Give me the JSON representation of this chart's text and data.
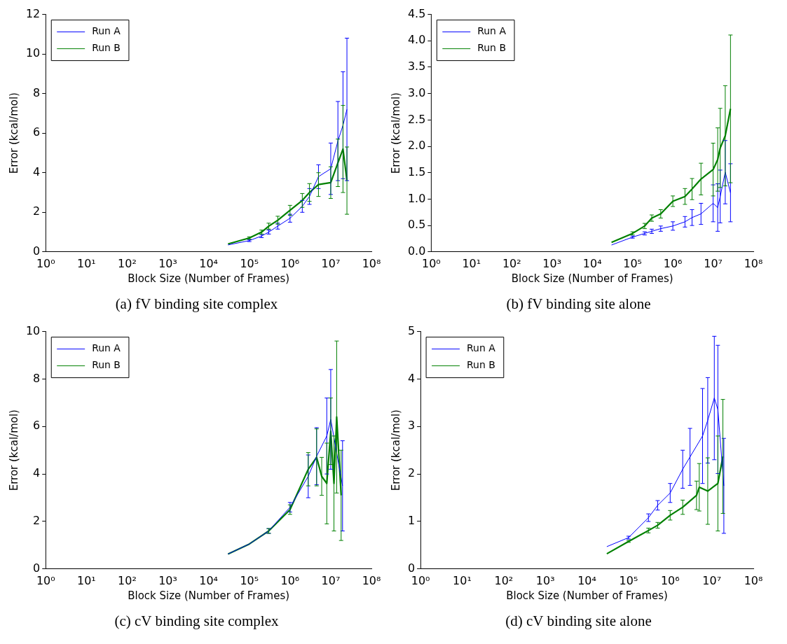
{
  "chart_data": [
    {
      "type": "line",
      "xlabel": "Block Size (Number of Frames)",
      "ylabel": "Error (kcal/mol)",
      "annotations": [
        "(a) fV binding site complex"
      ],
      "log": "x",
      "grid": false,
      "legend": "top left",
      "marker": "none",
      "line_style": "solid",
      "xlim": [
        1,
        100000000
      ],
      "xticks": [
        {
          "value": 1,
          "label": "10⁰"
        },
        {
          "value": 10,
          "label": "10¹"
        },
        {
          "value": 100,
          "label": "10²"
        },
        {
          "value": 1000,
          "label": "10³"
        },
        {
          "value": 10000,
          "label": "10⁴"
        },
        {
          "value": 100000,
          "label": "10⁵"
        },
        {
          "value": 1000000,
          "label": "10⁶"
        },
        {
          "value": 10000000,
          "label": "10⁷"
        },
        {
          "value": 100000000,
          "label": "10⁸"
        }
      ],
      "ylim": [
        0,
        12
      ],
      "yticks": [
        0,
        2,
        4,
        6,
        8,
        10,
        12
      ],
      "series": [
        {
          "name": "Run A",
          "color": "#0000ff",
          "x": [
            30000,
            100000,
            200000,
            300000,
            500000,
            1000000,
            2000000,
            3000000,
            5000000,
            10000000,
            15000000,
            20000000,
            25000000
          ],
          "values": [
            0.35,
            0.57,
            0.8,
            1.0,
            1.3,
            1.7,
            2.3,
            2.8,
            3.8,
            4.2,
            5.6,
            6.4,
            7.2
          ],
          "errors": [
            null,
            0.05,
            0.08,
            0.1,
            0.15,
            0.2,
            0.3,
            0.4,
            0.6,
            1.3,
            2.0,
            2.7,
            3.6
          ]
        },
        {
          "name": "Run B",
          "color": "#008000",
          "x": [
            30000,
            100000,
            200000,
            300000,
            500000,
            1000000,
            2000000,
            3000000,
            5000000,
            10000000,
            15000000,
            20000000,
            25000000
          ],
          "values": [
            0.4,
            0.7,
            1.0,
            1.3,
            1.6,
            2.1,
            2.6,
            3.0,
            3.4,
            3.5,
            4.5,
            5.2,
            3.6
          ],
          "errors": [
            null,
            0.06,
            0.1,
            0.15,
            0.2,
            0.25,
            0.35,
            0.45,
            0.6,
            0.8,
            1.2,
            2.2,
            1.7
          ]
        }
      ]
    },
    {
      "type": "line",
      "xlabel": "Block Size (Number of Frames)",
      "ylabel": "Error (kcal/mol)",
      "annotations": [
        "(b) fV binding site alone"
      ],
      "log": "x",
      "grid": false,
      "legend": "top left",
      "marker": "none",
      "line_style": "solid",
      "xlim": [
        1,
        100000000
      ],
      "xticks": [
        {
          "value": 1,
          "label": "10⁰"
        },
        {
          "value": 10,
          "label": "10¹"
        },
        {
          "value": 100,
          "label": "10²"
        },
        {
          "value": 1000,
          "label": "10³"
        },
        {
          "value": 10000,
          "label": "10⁴"
        },
        {
          "value": 100000,
          "label": "10⁵"
        },
        {
          "value": 1000000,
          "label": "10⁶"
        },
        {
          "value": 10000000,
          "label": "10⁷"
        },
        {
          "value": 100000000,
          "label": "10⁸"
        }
      ],
      "ylim": [
        0,
        4.5
      ],
      "yticks": [
        {
          "value": 0,
          "label": "0.0"
        },
        0.5,
        {
          "value": 1,
          "label": "1.0"
        },
        1.5,
        {
          "value": 2,
          "label": "2.0"
        },
        2.5,
        {
          "value": 3,
          "label": "3.0"
        },
        3.5,
        {
          "value": 4,
          "label": "4.0"
        },
        4.5
      ],
      "series": [
        {
          "name": "Run A",
          "color": "#0000ff",
          "x": [
            30000,
            100000,
            200000,
            300000,
            500000,
            1000000,
            2000000,
            3000000,
            5000000,
            10000000,
            13000000,
            15000000,
            20000000,
            27000000
          ],
          "values": [
            0.13,
            0.28,
            0.35,
            0.39,
            0.44,
            0.49,
            0.57,
            0.65,
            0.72,
            0.92,
            0.84,
            1.05,
            1.51,
            1.12
          ],
          "errors": [
            null,
            0.02,
            0.03,
            0.04,
            0.05,
            0.08,
            0.1,
            0.15,
            0.2,
            0.35,
            0.45,
            0.5,
            0.6,
            0.55
          ]
        },
        {
          "name": "Run B",
          "color": "#008000",
          "x": [
            30000,
            100000,
            200000,
            300000,
            500000,
            1000000,
            2000000,
            3000000,
            5000000,
            10000000,
            13000000,
            15000000,
            20000000,
            27000000
          ],
          "values": [
            0.18,
            0.35,
            0.49,
            0.64,
            0.72,
            0.96,
            1.05,
            1.19,
            1.38,
            1.56,
            1.75,
            1.97,
            2.2,
            2.71
          ],
          "errors": [
            null,
            0.03,
            0.05,
            0.06,
            0.08,
            0.1,
            0.15,
            0.2,
            0.3,
            0.5,
            0.6,
            0.75,
            0.95,
            1.4
          ]
        }
      ]
    },
    {
      "type": "line",
      "xlabel": "Block Size (Number of Frames)",
      "ylabel": "Error (kcal/mol)",
      "annotations": [
        "(c) cV binding site complex"
      ],
      "log": "x",
      "grid": false,
      "legend": "top left",
      "marker": "none",
      "line_style": "solid",
      "xlim": [
        1,
        100000000
      ],
      "xticks": [
        {
          "value": 1,
          "label": "10⁰"
        },
        {
          "value": 10,
          "label": "10¹"
        },
        {
          "value": 100,
          "label": "10²"
        },
        {
          "value": 1000,
          "label": "10³"
        },
        {
          "value": 10000,
          "label": "10⁴"
        },
        {
          "value": 100000,
          "label": "10⁵"
        },
        {
          "value": 1000000,
          "label": "10⁶"
        },
        {
          "value": 10000000,
          "label": "10⁷"
        },
        {
          "value": 100000000,
          "label": "10⁸"
        }
      ],
      "ylim": [
        0,
        10
      ],
      "yticks": [
        0,
        2,
        4,
        6,
        8,
        10
      ],
      "series": [
        {
          "name": "Run A",
          "color": "#0000ff",
          "x": [
            30000,
            100000,
            300000,
            1000000,
            2800000,
            4500000,
            8000000,
            10000000,
            19500000
          ],
          "values": [
            0.63,
            1.05,
            1.6,
            2.6,
            3.9,
            4.75,
            5.6,
            6.3,
            3.5
          ],
          "errors": [
            null,
            null,
            0.1,
            0.2,
            0.9,
            1.2,
            1.6,
            2.1,
            1.9
          ]
        },
        {
          "name": "Run B",
          "color": "#008000",
          "x": [
            30000,
            100000,
            300000,
            1000000,
            2800000,
            4500000,
            6000000,
            8000000,
            10000000,
            12000000,
            14000000,
            18000000
          ],
          "values": [
            0.63,
            1.05,
            1.6,
            2.5,
            4.2,
            4.7,
            3.9,
            3.6,
            5.8,
            3.6,
            6.4,
            3.1
          ],
          "errors": [
            null,
            null,
            0.1,
            0.2,
            0.7,
            1.2,
            0.8,
            1.7,
            1.4,
            2.0,
            3.2,
            1.9
          ]
        }
      ]
    },
    {
      "type": "line",
      "xlabel": "Block Size (Number of Frames)",
      "ylabel": "Error (kcal/mol)",
      "annotations": [
        "(d) cV binding site alone"
      ],
      "log": "x",
      "grid": false,
      "legend": "top left",
      "marker": "none",
      "line_style": "solid",
      "xlim": [
        1,
        100000000
      ],
      "xticks": [
        {
          "value": 1,
          "label": "10⁰"
        },
        {
          "value": 10,
          "label": "10¹"
        },
        {
          "value": 100,
          "label": "10²"
        },
        {
          "value": 1000,
          "label": "10³"
        },
        {
          "value": 10000,
          "label": "10⁴"
        },
        {
          "value": 100000,
          "label": "10⁵"
        },
        {
          "value": 1000000,
          "label": "10⁶"
        },
        {
          "value": 10000000,
          "label": "10⁷"
        },
        {
          "value": 100000000,
          "label": "10⁸"
        }
      ],
      "ylim": [
        0,
        5
      ],
      "yticks": [
        0,
        1,
        2,
        3,
        4,
        5
      ],
      "series": [
        {
          "name": "Run A",
          "color": "#0000ff",
          "x": [
            30000,
            100000,
            300000,
            500000,
            1000000,
            2000000,
            3000000,
            6000000,
            8000000,
            11500000,
            14000000,
            19500000
          ],
          "values": [
            0.47,
            0.66,
            1.08,
            1.34,
            1.6,
            2.1,
            2.36,
            2.8,
            3.13,
            3.6,
            3.36,
            1.75
          ],
          "errors": [
            null,
            0.03,
            0.08,
            0.1,
            0.2,
            0.4,
            0.6,
            1.0,
            0.9,
            1.3,
            1.35,
            1.0
          ]
        },
        {
          "name": "Run B",
          "color": "#008000",
          "x": [
            30000,
            100000,
            300000,
            500000,
            1000000,
            2000000,
            4300000,
            5000000,
            8000000,
            14000000,
            18500000
          ],
          "values": [
            0.32,
            0.58,
            0.81,
            0.92,
            1.13,
            1.3,
            1.55,
            1.72,
            1.64,
            1.8,
            2.37
          ],
          "errors": [
            null,
            0.02,
            0.05,
            0.06,
            0.1,
            0.15,
            0.3,
            0.5,
            0.7,
            1.0,
            1.2
          ]
        }
      ]
    }
  ]
}
